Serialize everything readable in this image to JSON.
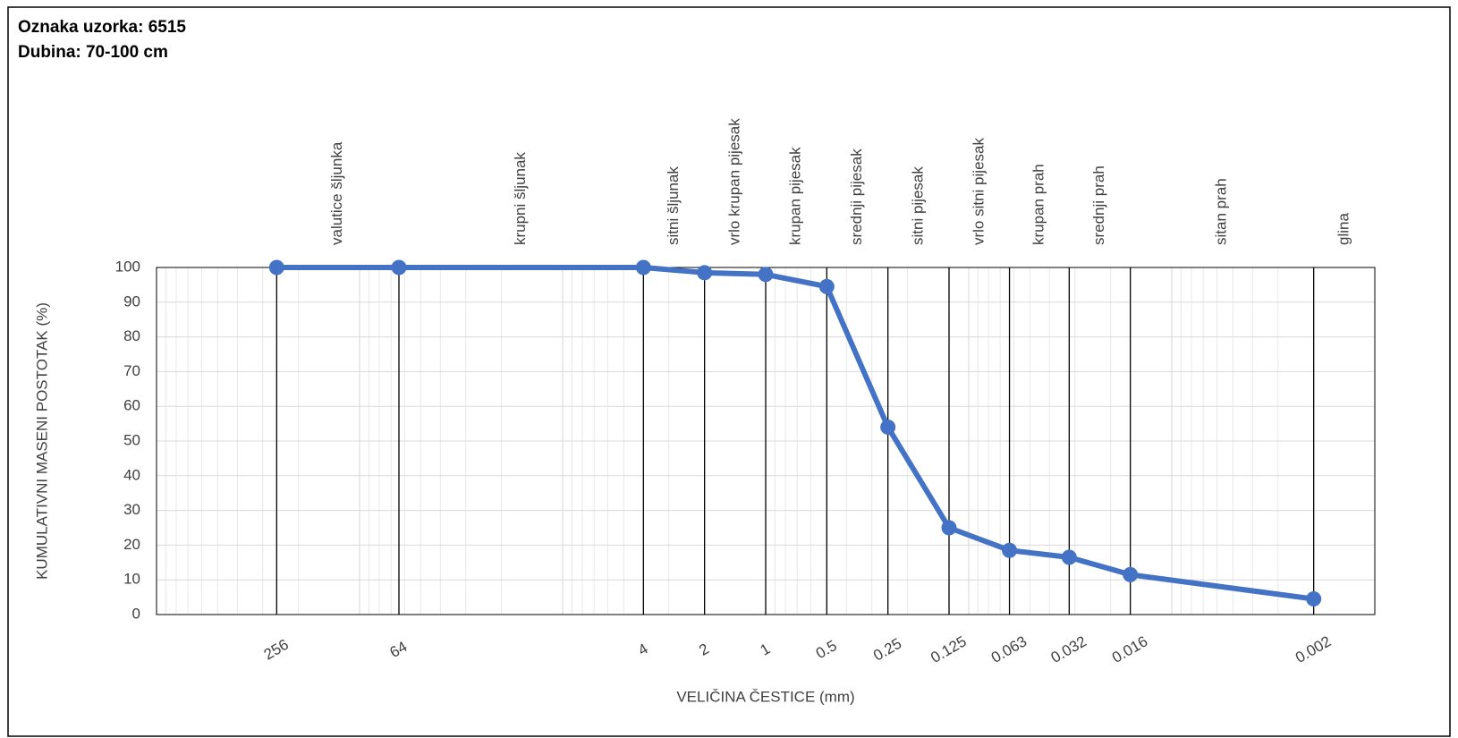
{
  "chart_data": {
    "type": "line",
    "title": "Oznaka uzorka: 6515",
    "subtitle": "Dubina: 70-100 cm",
    "x_label": "VELIČINA ČESTICE (mm)",
    "y_label": "KUMULATIVNI MASENI POSTOTAK (%)",
    "x": [
      256,
      64,
      4,
      2,
      1,
      0.5,
      0.25,
      0.125,
      0.063,
      0.032,
      0.016,
      0.002
    ],
    "series": [
      {
        "color": "#4472c4",
        "values": [
          100,
          100,
          100,
          98.5,
          98,
          94.5,
          54,
          25,
          18.5,
          16.5,
          11.5,
          4.5
        ]
      }
    ],
    "zones": [
      "valutice šljunka",
      "krupni šljunak",
      "sitni šljunak",
      "vrlo krupan pijesak",
      "krupan pijesak",
      "srednji pijesak",
      "sitni pijesak",
      "vrlo sitni pijesak",
      "krupan prah",
      "srednji prah",
      "sitan prah",
      "glina"
    ],
    "x_log": true,
    "xlim": [
      1000,
      0.001
    ],
    "ylim": [
      0,
      100
    ],
    "yticks": [
      0,
      10,
      20,
      30,
      40,
      50,
      60,
      70,
      80,
      90,
      100
    ],
    "grid": true,
    "x_minor_grid": true
  }
}
